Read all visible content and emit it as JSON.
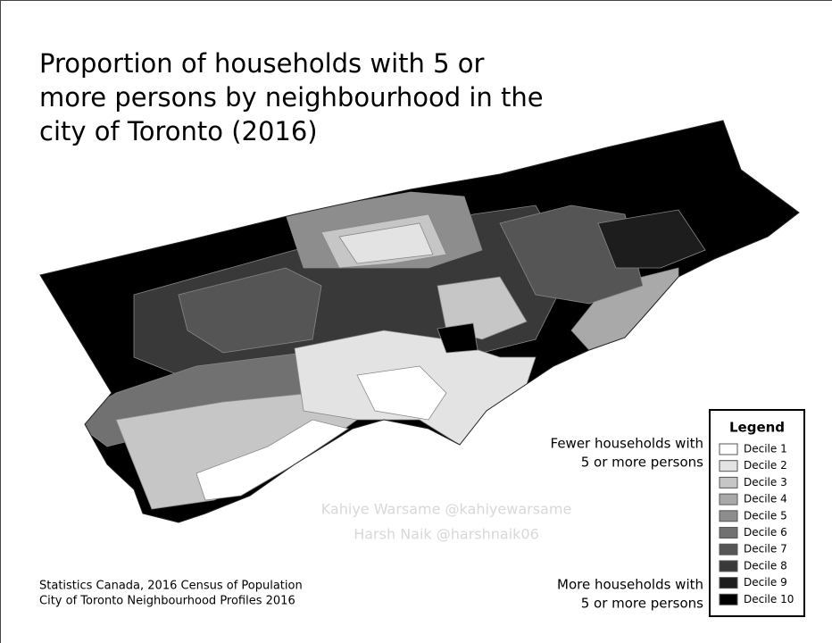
{
  "title_lines": [
    "Proportion of households with 5 or",
    "more persons by neighbourhood in the",
    "city of Toronto (2016)"
  ],
  "legend": {
    "title": "Legend",
    "items": [
      {
        "label": "Decile 1",
        "color": "#ffffff"
      },
      {
        "label": "Decile 2",
        "color": "#e3e3e3"
      },
      {
        "label": "Decile 3",
        "color": "#c6c6c6"
      },
      {
        "label": "Decile 4",
        "color": "#a9a9a9"
      },
      {
        "label": "Decile 5",
        "color": "#8d8d8d"
      },
      {
        "label": "Decile 6",
        "color": "#717171"
      },
      {
        "label": "Decile 7",
        "color": "#555555"
      },
      {
        "label": "Decile 8",
        "color": "#393939"
      },
      {
        "label": "Decile 9",
        "color": "#1d1d1d"
      },
      {
        "label": "Decile 10",
        "color": "#000000"
      }
    ]
  },
  "annotations": {
    "fewer": [
      "Fewer households with",
      "5 or more persons"
    ],
    "more": [
      "More households with",
      "5 or more persons"
    ]
  },
  "sources": [
    "Statistics Canada, 2016 Census of Population",
    "City of Toronto Neighbourhood Profiles 2016"
  ],
  "watermark": [
    "Kahiye Warsame @kahiyewarsame",
    "Harsh Naik @harshnaik06"
  ]
}
